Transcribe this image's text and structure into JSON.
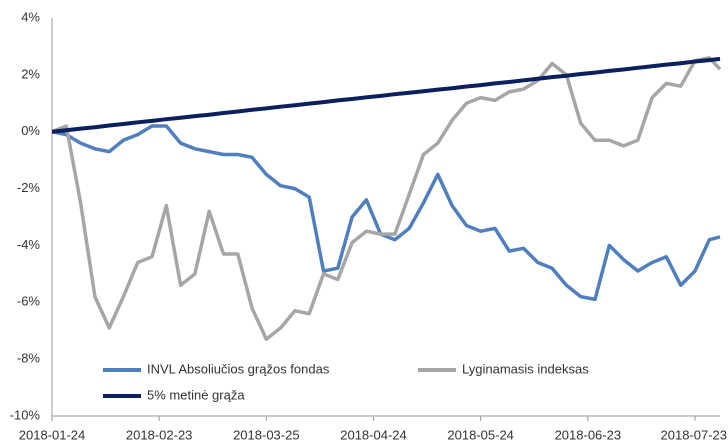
{
  "chart_data": {
    "type": "line",
    "x": [
      "2018-01-24",
      "2018-01-28",
      "2018-02-01",
      "2018-02-05",
      "2018-02-09",
      "2018-02-13",
      "2018-02-17",
      "2018-02-21",
      "2018-02-25",
      "2018-03-01",
      "2018-03-05",
      "2018-03-09",
      "2018-03-13",
      "2018-03-17",
      "2018-03-21",
      "2018-03-25",
      "2018-03-29",
      "2018-04-02",
      "2018-04-06",
      "2018-04-10",
      "2018-04-14",
      "2018-04-18",
      "2018-04-22",
      "2018-04-26",
      "2018-04-30",
      "2018-05-04",
      "2018-05-08",
      "2018-05-12",
      "2018-05-16",
      "2018-05-20",
      "2018-05-24",
      "2018-05-28",
      "2018-06-01",
      "2018-06-05",
      "2018-06-09",
      "2018-06-13",
      "2018-06-17",
      "2018-06-21",
      "2018-06-25",
      "2018-06-29",
      "2018-07-03",
      "2018-07-07",
      "2018-07-11",
      "2018-07-15",
      "2018-07-19",
      "2018-07-23",
      "2018-07-27",
      "2018-07-30"
    ],
    "series": [
      {
        "name": "INVL Absoliučios grąžos fondas",
        "color": "#4f7fbf",
        "values": [
          0,
          -0.1,
          -0.4,
          -0.6,
          -0.7,
          -0.3,
          -0.1,
          0.2,
          0.2,
          -0.4,
          -0.6,
          -0.7,
          -0.8,
          -0.8,
          -0.9,
          -1.5,
          -1.9,
          -2.0,
          -2.3,
          -4.9,
          -4.8,
          -3.0,
          -2.4,
          -3.6,
          -3.8,
          -3.4,
          -2.5,
          -1.5,
          -2.6,
          -3.3,
          -3.5,
          -3.4,
          -4.2,
          -4.1,
          -4.6,
          -4.8,
          -5.4,
          -5.8,
          -5.9,
          -4.0,
          -4.5,
          -4.9,
          -4.6,
          -4.4,
          -5.4,
          -4.9,
          -3.8,
          -3.7
        ]
      },
      {
        "name": "Lyginamasis indeksas",
        "color": "#a6a6a6",
        "values": [
          0,
          0.2,
          -2.5,
          -5.8,
          -6.9,
          -5.8,
          -4.6,
          -4.4,
          -2.6,
          -5.4,
          -5.0,
          -2.8,
          -4.3,
          -4.3,
          -6.2,
          -7.3,
          -6.9,
          -6.3,
          -6.4,
          -5.0,
          -5.2,
          -3.9,
          -3.5,
          -3.6,
          -3.6,
          -2.2,
          -0.8,
          -0.4,
          0.4,
          1.0,
          1.2,
          1.1,
          1.4,
          1.5,
          1.8,
          2.4,
          2.0,
          0.3,
          -0.3,
          -0.3,
          -0.5,
          -0.3,
          1.2,
          1.7,
          1.6,
          2.5,
          2.6,
          2.2
        ]
      },
      {
        "name": "5% metinė grąža",
        "color": "#0c1f5e",
        "values": [
          0,
          0.05,
          0.11,
          0.16,
          0.22,
          0.27,
          0.33,
          0.38,
          0.44,
          0.49,
          0.55,
          0.6,
          0.66,
          0.71,
          0.77,
          0.82,
          0.88,
          0.93,
          0.99,
          1.04,
          1.1,
          1.15,
          1.21,
          1.26,
          1.32,
          1.37,
          1.42,
          1.48,
          1.53,
          1.59,
          1.64,
          1.7,
          1.75,
          1.81,
          1.86,
          1.92,
          1.97,
          2.03,
          2.08,
          2.14,
          2.19,
          2.25,
          2.3,
          2.36,
          2.41,
          2.47,
          2.52,
          2.56
        ]
      }
    ],
    "xlim": [
      "2018-01-24",
      "2018-07-30"
    ],
    "xticks": [
      "2018-01-24",
      "2018-02-23",
      "2018-03-25",
      "2018-04-24",
      "2018-05-24",
      "2018-06-23",
      "2018-07-23"
    ],
    "ylim": [
      -10,
      4
    ],
    "yticks": [
      {
        "value": -10,
        "label": "-10%"
      },
      {
        "value": -8,
        "label": "-8%"
      },
      {
        "value": -6,
        "label": "-6%"
      },
      {
        "value": -4,
        "label": "-4%"
      },
      {
        "value": -2,
        "label": "-2%"
      },
      {
        "value": 0,
        "label": "0%"
      },
      {
        "value": 2,
        "label": "2%"
      },
      {
        "value": 4,
        "label": "4%"
      }
    ],
    "grid": false
  }
}
